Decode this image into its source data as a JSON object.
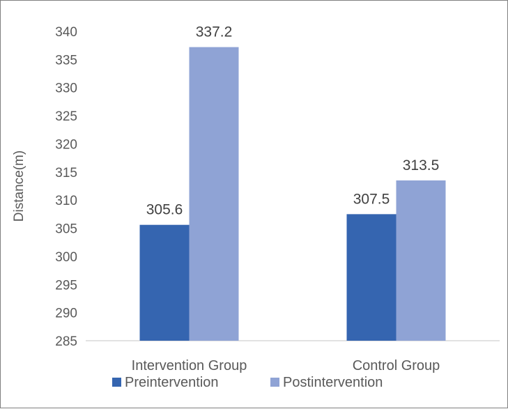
{
  "chart_data": {
    "type": "bar",
    "title": "",
    "xlabel": "",
    "ylabel": "Distance(m)",
    "categories": [
      "Intervention Group",
      "Control Group"
    ],
    "series": [
      {
        "name": "Preintervention",
        "values": [
          305.6,
          307.5
        ],
        "color": "#3565b0"
      },
      {
        "name": "Postintervention",
        "values": [
          337.2,
          313.5
        ],
        "color": "#8fa3d5"
      }
    ],
    "ylim": [
      285,
      340
    ],
    "yticks": [
      285,
      290,
      295,
      300,
      305,
      310,
      315,
      320,
      325,
      330,
      335,
      340
    ],
    "data_labels": [
      [
        "305.6",
        "307.5"
      ],
      [
        "337.2",
        "313.5"
      ]
    ],
    "grid": false,
    "legend": "bottom",
    "axis_color": "#d9d9d9"
  }
}
